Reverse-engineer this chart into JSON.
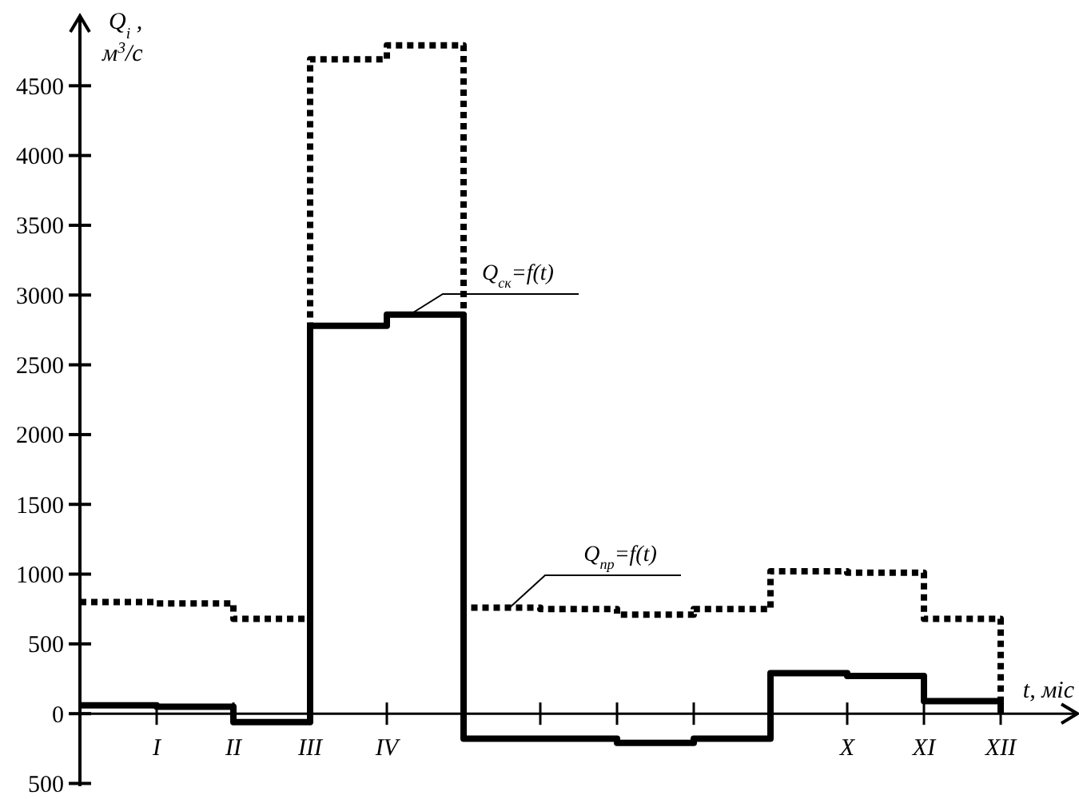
{
  "chart_data": {
    "type": "step",
    "xlabel": "t, міс",
    "ylabel": "Q$_{i}$ ,\nм$^{3}$/с",
    "categories": [
      null,
      "I",
      "II",
      "III",
      "IV",
      null,
      null,
      null,
      null,
      null,
      "X",
      "XI",
      "XII"
    ],
    "series": [
      {
        "name": "Q$_{ск}$=f(t)",
        "color": "#000000",
        "line_style": "solid",
        "values": [
          60,
          50,
          -60,
          2780,
          2860,
          -180,
          -180,
          -210,
          -180,
          290,
          270,
          90,
          0
        ]
      },
      {
        "name": "Q$_{пр}$=f(t)",
        "color": "#000000",
        "line_style": "dotted",
        "values": [
          800,
          790,
          680,
          4690,
          4790,
          760,
          750,
          710,
          750,
          1020,
          1010,
          680,
          0
        ]
      }
    ],
    "ylim": [
      -520,
      5000
    ],
    "yticks": [
      {
        "value": -500,
        "label": "500"
      },
      0,
      500,
      1000,
      1500,
      2000,
      2500,
      3000,
      3500,
      4000,
      4500
    ],
    "grid": false
  }
}
